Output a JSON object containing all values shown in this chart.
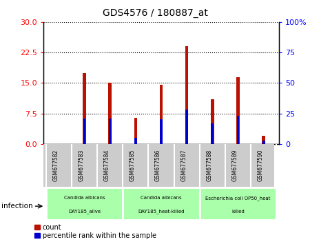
{
  "title": "GDS4576 / 180887_at",
  "samples": [
    "GSM677582",
    "GSM677583",
    "GSM677584",
    "GSM677585",
    "GSM677586",
    "GSM677587",
    "GSM677588",
    "GSM677589",
    "GSM677590"
  ],
  "count_values": [
    0.0,
    17.5,
    15.0,
    6.5,
    14.5,
    24.0,
    11.0,
    16.5,
    2.0
  ],
  "percentile_values": [
    0.0,
    21.0,
    21.0,
    5.0,
    20.0,
    28.0,
    17.0,
    23.0,
    3.0
  ],
  "left_yticks": [
    0,
    7.5,
    15,
    22.5,
    30
  ],
  "right_yticks": [
    0,
    25,
    50,
    75,
    100
  ],
  "left_ylim": [
    0,
    30
  ],
  "right_ylim": [
    0,
    100
  ],
  "bar_color": "#bb1100",
  "percentile_color": "#0000cc",
  "groups": [
    {
      "label": "Candida albicans\nDAY185_alive",
      "start": 0,
      "end": 3
    },
    {
      "label": "Candida albicans\nDAY185_heat-killed",
      "start": 3,
      "end": 6
    },
    {
      "label": "Escherichia coli OP50_heat\nkilled",
      "start": 6,
      "end": 9
    }
  ],
  "group_color": "#aaffaa",
  "tick_bg_color": "#cccccc",
  "infection_label": "infection",
  "legend_count_label": "count",
  "legend_percentile_label": "percentile rank within the sample",
  "bar_width": 0.12,
  "percentile_bar_width": 0.1
}
